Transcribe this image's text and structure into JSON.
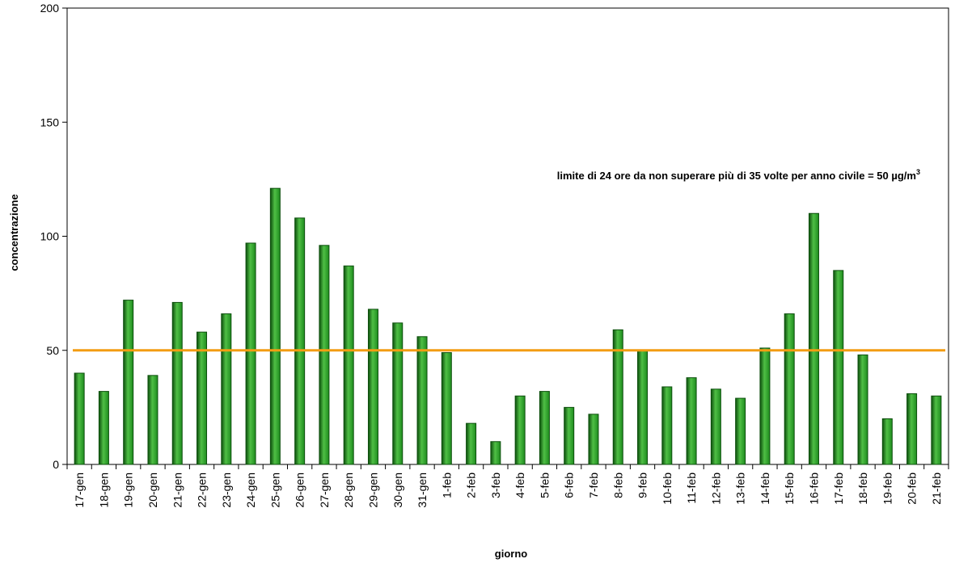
{
  "chart_data": {
    "type": "bar",
    "title": "",
    "xlabel": "giorno",
    "ylabel": "concentrazione",
    "ylim": [
      0,
      200
    ],
    "yticks": [
      "0",
      "50",
      "100",
      "150",
      "200"
    ],
    "grid": false,
    "legend": "none",
    "categories": [
      "17-gen",
      "18-gen",
      "19-gen",
      "20-gen",
      "21-gen",
      "22-gen",
      "23-gen",
      "24-gen",
      "25-gen",
      "26-gen",
      "27-gen",
      "28-gen",
      "29-gen",
      "30-gen",
      "31-gen",
      "1-feb",
      "2-feb",
      "3-feb",
      "4-feb",
      "5-feb",
      "6-feb",
      "7-feb",
      "8-feb",
      "9-feb",
      "10-feb",
      "11-feb",
      "12-feb",
      "13-feb",
      "14-feb",
      "15-feb",
      "16-feb",
      "17-feb",
      "18-feb",
      "19-feb",
      "20-feb",
      "21-feb"
    ],
    "values": [
      40,
      32,
      72,
      39,
      71,
      58,
      66,
      97,
      121,
      108,
      96,
      87,
      68,
      62,
      56,
      49,
      18,
      10,
      30,
      32,
      25,
      22,
      59,
      50,
      34,
      38,
      33,
      29,
      51,
      66,
      110,
      85,
      48,
      20,
      31,
      30
    ],
    "threshold": {
      "value": 50,
      "color": "#f39c12",
      "label_main": "limite di 24 ore da non superare più di 35 volte per anno civile = 50 µg/m",
      "label_sup": "3"
    },
    "colors": {
      "bar": "#1e8c1e",
      "bar_light": "#4fbf45",
      "bar_dark": "#0d4f0d"
    }
  }
}
